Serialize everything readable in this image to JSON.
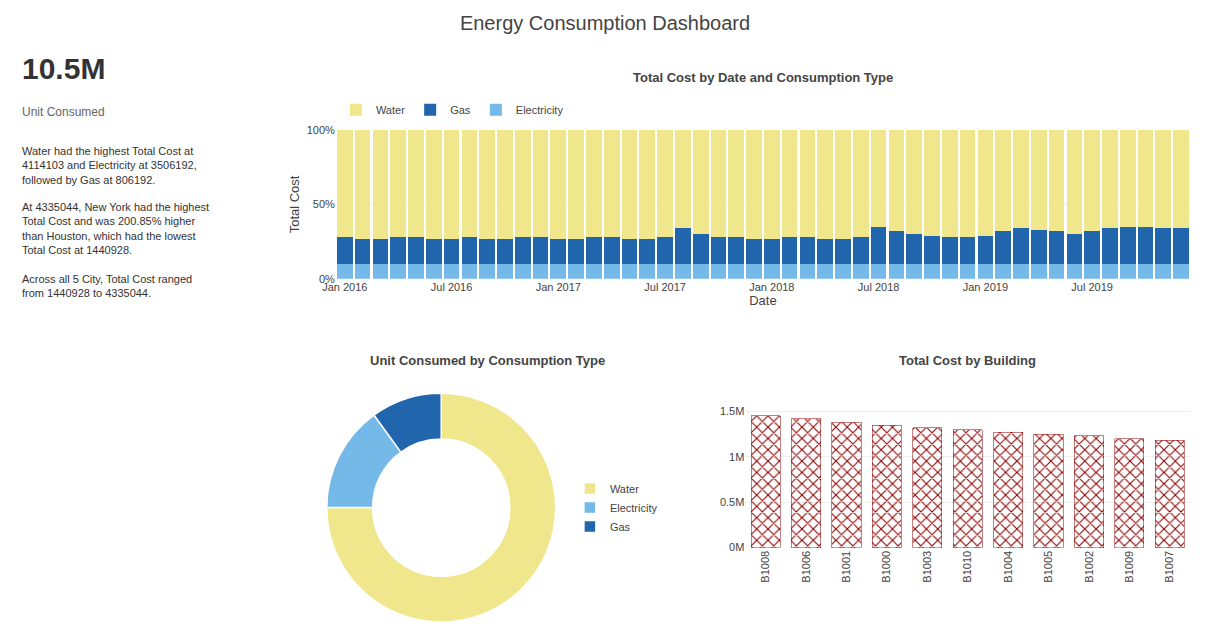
{
  "title": "Energy Consumption Dashboard",
  "annotations": [
    "10.5M",
    "Unit Consumed",
    "Water had the highest Total Cost at 4114103 and Electricity at 3506192, followed by Gas at 806192.",
    "At 4335044, New York had the highest Total Cost and was 200.85% higher than Houston, which had the lowest Total Cost at 1440928.",
    "Across all 5 City, Total Cost ranged from 1440928 to 4335044."
  ],
  "chart_data": [
    {
      "type": "bar",
      "title": "Total Cost by Date and Consumption Type",
      "xlabel": "Date",
      "ylabel": "Total Cost",
      "stacked": true,
      "grid": true,
      "legend": "top left",
      "categories": [
        "Jan 2016",
        null,
        null,
        null,
        null,
        null,
        "Jul 2016",
        null,
        null,
        null,
        null,
        null,
        "Jan 2017",
        null,
        null,
        null,
        null,
        null,
        "Jul 2017",
        null,
        null,
        null,
        null,
        null,
        "Jan 2018",
        null,
        null,
        null,
        null,
        null,
        "Jul 2018",
        null,
        null,
        null,
        null,
        null,
        "Jan 2019",
        null,
        null,
        null,
        null,
        null,
        "Jul 2019",
        null,
        null,
        null,
        null,
        null
      ],
      "series": [
        {
          "name": "Electricity",
          "color": "#74b9e8",
          "values": [
            10,
            10,
            10,
            10,
            10,
            10,
            10,
            10,
            10,
            10,
            10,
            10,
            10,
            10,
            10,
            10,
            10,
            10,
            10,
            10,
            10,
            10,
            10,
            10,
            10,
            10,
            10,
            10,
            10,
            10,
            10,
            10,
            10,
            10,
            10,
            10,
            10,
            10,
            10,
            10,
            10,
            10,
            10,
            10,
            10,
            10,
            10,
            10
          ]
        },
        {
          "name": "Gas",
          "color": "#2166ac",
          "values": [
            18,
            17,
            17,
            18,
            18,
            17,
            17,
            18,
            17,
            17,
            18,
            18,
            17,
            17,
            18,
            18,
            17,
            17,
            18,
            24,
            20,
            18,
            18,
            17,
            17,
            18,
            18,
            17,
            17,
            18,
            25,
            22,
            20,
            19,
            18,
            18,
            19,
            22,
            24,
            23,
            22,
            20,
            22,
            24,
            25,
            25,
            24,
            24
          ]
        },
        {
          "name": "Water",
          "color": "#f0e68c",
          "values": [
            72,
            73,
            73,
            72,
            72,
            73,
            73,
            72,
            73,
            73,
            72,
            72,
            73,
            73,
            72,
            72,
            73,
            73,
            72,
            66,
            70,
            72,
            72,
            73,
            73,
            72,
            72,
            73,
            73,
            72,
            65,
            68,
            70,
            71,
            72,
            72,
            71,
            68,
            66,
            67,
            68,
            70,
            68,
            66,
            65,
            65,
            66,
            66
          ]
        }
      ],
      "ylim": [
        0,
        100
      ],
      "yticks": [
        {
          "value": 0,
          "label": "0%"
        },
        {
          "value": 50,
          "label": "50%"
        },
        {
          "value": 100,
          "label": "100%"
        }
      ]
    },
    {
      "type": "pie",
      "title": "Unit Consumed by Consumption Type",
      "legend": "right",
      "categories": [
        "Water",
        "Electricity",
        "Gas"
      ],
      "values": [
        75,
        15,
        10
      ],
      "colors": [
        "#f0e68c",
        "#74b9e8",
        "#2166ac"
      ]
    },
    {
      "type": "bar",
      "title": "Total Cost by Building",
      "grid": true,
      "color": "#c0392b",
      "categories": [
        "B1008",
        "B1006",
        "B1001",
        "B1000",
        "B1003",
        "B1010",
        "B1004",
        "B1005",
        "B1002",
        "B1009",
        "B1007"
      ],
      "values": [
        1450000,
        1420000,
        1380000,
        1350000,
        1320000,
        1300000,
        1270000,
        1250000,
        1230000,
        1200000,
        1180000
      ],
      "ylim": [
        0,
        1700000
      ],
      "yticks": [
        {
          "value": 0,
          "label": "0M"
        },
        {
          "value": 500000,
          "label": "0.5M"
        },
        {
          "value": 1000000,
          "label": "1M"
        },
        {
          "value": 1500000,
          "label": "1.5M"
        }
      ]
    }
  ]
}
